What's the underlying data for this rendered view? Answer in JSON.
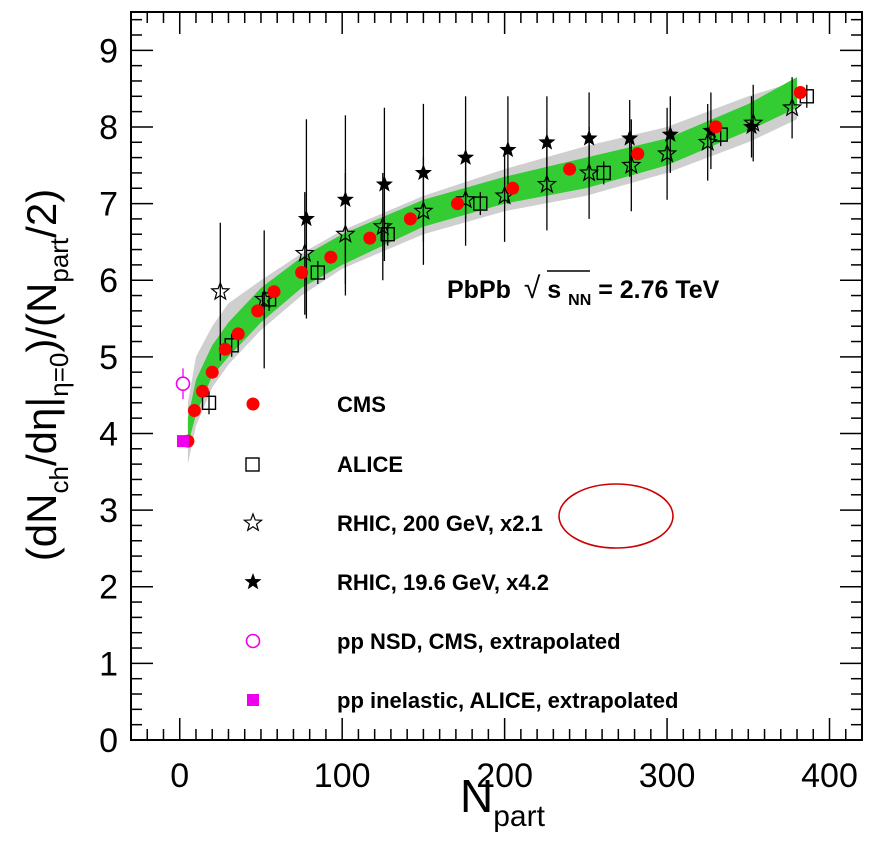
{
  "chart_data": {
    "type": "scatter",
    "xlabel_main": "N",
    "xlabel_sub": "part",
    "ylabel_parts": [
      "(dN",
      "ch",
      "/dη|",
      "η=0",
      ")/(N",
      "part",
      "/2)"
    ],
    "xlim": [
      -30,
      420
    ],
    "ylim": [
      0,
      9.5
    ],
    "x_ticks": [
      0,
      100,
      200,
      300,
      400
    ],
    "y_ticks": [
      0,
      1,
      2,
      3,
      4,
      5,
      6,
      7,
      8,
      9
    ],
    "annotation": {
      "prefix": "PbPb",
      "sqrt_sym": "√",
      "s_var": "s",
      "s_sub": "NN",
      "suffix": " = 2.76 TeV"
    },
    "bands": {
      "gray": {
        "x": [
          5,
          10,
          20,
          30,
          50,
          75,
          100,
          150,
          200,
          250,
          300,
          350,
          380
        ],
        "low": [
          3.6,
          4.1,
          4.6,
          4.9,
          5.35,
          5.8,
          6.15,
          6.6,
          6.9,
          7.1,
          7.4,
          7.8,
          8.1
        ],
        "high": [
          4.4,
          5.0,
          5.4,
          5.7,
          6.0,
          6.35,
          6.65,
          7.1,
          7.45,
          7.75,
          8.0,
          8.4,
          8.6
        ]
      },
      "green": {
        "x": [
          5,
          10,
          20,
          30,
          50,
          75,
          100,
          150,
          200,
          250,
          300,
          350,
          380
        ],
        "low": [
          3.85,
          4.25,
          4.75,
          5.0,
          5.45,
          5.9,
          6.2,
          6.7,
          7.0,
          7.2,
          7.5,
          7.95,
          8.25
        ],
        "high": [
          4.2,
          4.7,
          5.15,
          5.45,
          5.9,
          6.3,
          6.6,
          7.05,
          7.35,
          7.6,
          7.85,
          8.3,
          8.65
        ]
      }
    },
    "series": [
      {
        "name": "CMS",
        "marker": "filled-circle",
        "color": "#ff0000",
        "x": [
          5,
          9,
          14,
          20,
          28,
          36,
          48,
          58,
          75,
          93,
          117,
          142,
          171,
          205,
          240,
          282,
          330,
          382
        ],
        "y": [
          3.9,
          4.3,
          4.55,
          4.8,
          5.1,
          5.3,
          5.6,
          5.85,
          6.1,
          6.3,
          6.55,
          6.8,
          7.0,
          7.2,
          7.45,
          7.65,
          8.0,
          8.45
        ]
      },
      {
        "name": "ALICE",
        "marker": "open-square",
        "color": "#000000",
        "x": [
          18,
          32,
          55,
          85,
          128,
          185,
          261,
          333,
          386
        ],
        "y": [
          4.4,
          5.15,
          5.75,
          6.1,
          6.6,
          7.0,
          7.4,
          7.9,
          8.4
        ],
        "err": [
          0.15,
          0.15,
          0.15,
          0.15,
          0.15,
          0.15,
          0.15,
          0.15,
          0.15
        ]
      },
      {
        "name": "RHIC, 200 GeV, x2.1",
        "marker": "open-star",
        "color": "#000000",
        "x": [
          25,
          52,
          77,
          102,
          125,
          150,
          176,
          200,
          226,
          252,
          278,
          300,
          325,
          353,
          377
        ],
        "y": [
          5.85,
          5.75,
          6.35,
          6.6,
          6.7,
          6.9,
          7.05,
          7.1,
          7.25,
          7.4,
          7.5,
          7.65,
          7.8,
          8.05,
          8.25
        ],
        "err": [
          0.9,
          0.9,
          0.8,
          0.8,
          0.7,
          0.7,
          0.6,
          0.6,
          0.6,
          0.6,
          0.6,
          0.6,
          0.5,
          0.5,
          0.4
        ]
      },
      {
        "name": "RHIC, 19.6 GeV, x4.2",
        "marker": "filled-star",
        "color": "#000000",
        "x": [
          78,
          102,
          126,
          150,
          176,
          202,
          226,
          252,
          277,
          302,
          327,
          352
        ],
        "y": [
          6.8,
          7.05,
          7.25,
          7.4,
          7.6,
          7.7,
          7.8,
          7.85,
          7.85,
          7.9,
          7.95,
          8.0
        ],
        "err": [
          1.3,
          1.1,
          1.0,
          0.9,
          0.8,
          0.7,
          0.6,
          0.6,
          0.5,
          0.5,
          0.5,
          0.4
        ]
      },
      {
        "name": "pp NSD, CMS, extrapolated",
        "marker": "open-circle",
        "color": "#ee00ee",
        "x": [
          2
        ],
        "y": [
          4.65
        ],
        "err": [
          0.2
        ]
      },
      {
        "name": "pp inelastic, ALICE, extrapolated",
        "marker": "filled-square",
        "color": "#ee00ee",
        "x": [
          2
        ],
        "y": [
          3.9
        ]
      }
    ],
    "band_colors": {
      "gray": "#cfcfcf",
      "green": "#33cc33"
    },
    "highlight_color": "#cc0000"
  }
}
